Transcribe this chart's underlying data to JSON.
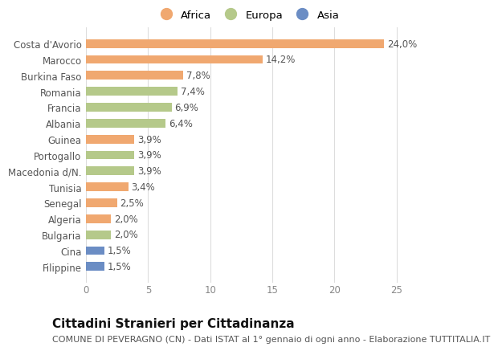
{
  "categories": [
    "Costa d'Avorio",
    "Marocco",
    "Burkina Faso",
    "Romania",
    "Francia",
    "Albania",
    "Guinea",
    "Portogallo",
    "Macedonia d/N.",
    "Tunisia",
    "Senegal",
    "Algeria",
    "Bulgaria",
    "Cina",
    "Filippine"
  ],
  "values": [
    24.0,
    14.2,
    7.8,
    7.4,
    6.9,
    6.4,
    3.9,
    3.9,
    3.9,
    3.4,
    2.5,
    2.0,
    2.0,
    1.5,
    1.5
  ],
  "labels": [
    "24,0%",
    "14,2%",
    "7,8%",
    "7,4%",
    "6,9%",
    "6,4%",
    "3,9%",
    "3,9%",
    "3,9%",
    "3,4%",
    "2,5%",
    "2,0%",
    "2,0%",
    "1,5%",
    "1,5%"
  ],
  "continents": [
    "Africa",
    "Africa",
    "Africa",
    "Europa",
    "Europa",
    "Europa",
    "Africa",
    "Europa",
    "Europa",
    "Africa",
    "Africa",
    "Africa",
    "Europa",
    "Asia",
    "Asia"
  ],
  "colors": {
    "Africa": "#F0A870",
    "Europa": "#B5C98A",
    "Asia": "#6B8DC4"
  },
  "legend_labels": [
    "Africa",
    "Europa",
    "Asia"
  ],
  "title": "Cittadini Stranieri per Cittadinanza",
  "subtitle": "COMUNE DI PEVERAGNO (CN) - Dati ISTAT al 1° gennaio di ogni anno - Elaborazione TUTTITALIA.IT",
  "xlim": [
    0,
    26
  ],
  "xticks": [
    0,
    5,
    10,
    15,
    20,
    25
  ],
  "background_color": "#ffffff",
  "grid_color": "#dddddd",
  "title_fontsize": 11,
  "subtitle_fontsize": 8,
  "label_fontsize": 8.5,
  "tick_fontsize": 8.5,
  "legend_fontsize": 9.5,
  "bar_height": 0.55
}
